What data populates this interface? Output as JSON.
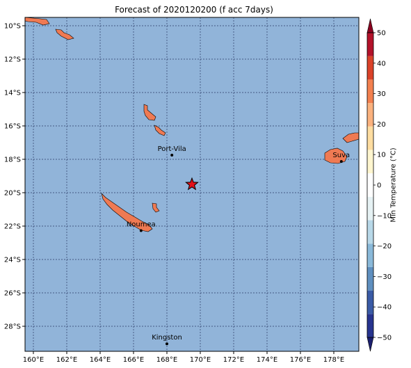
{
  "title": "Forecast of 2020120200 (f acc 7days)",
  "map": {
    "lon_range": [
      159.5,
      179.5
    ],
    "lat_range": [
      -29.5,
      -9.5
    ],
    "lon_ticks": [
      "160°E",
      "162°E",
      "164°E",
      "166°E",
      "168°E",
      "170°E",
      "172°E",
      "174°E",
      "176°E",
      "178°E"
    ],
    "lat_ticks": [
      "10°S",
      "12°S",
      "14°S",
      "16°S",
      "18°S",
      "20°S",
      "22°S",
      "24°S",
      "26°S",
      "28°S"
    ],
    "ocean_color": "#91b4d9",
    "land_color": "#ef7a53",
    "cities": [
      {
        "name": "Port-Vila",
        "lon": 168.3,
        "lat": -17.75
      },
      {
        "name": "Noumea",
        "lon": 166.45,
        "lat": -22.27
      },
      {
        "name": "Suva",
        "lon": 178.45,
        "lat": -18.13
      },
      {
        "name": "Kingston",
        "lon": 168.0,
        "lat": -29.05
      }
    ],
    "marker": {
      "type": "star-icon",
      "color": "#e3111b",
      "lon": 169.5,
      "lat": -19.5
    }
  },
  "colorbar": {
    "label": "Min Temperature (°C)",
    "ticks": [
      "50",
      "40",
      "30",
      "20",
      "10",
      "0",
      "−10",
      "−20",
      "−30",
      "−40",
      "−50"
    ],
    "colors": [
      "#1b1f6e",
      "#27348f",
      "#3a5ba6",
      "#5f8fbf",
      "#8ab9d9",
      "#b8d8e8",
      "#e6f2f4",
      "#ffffff",
      "#fff6cf",
      "#fedda1",
      "#fbb27e",
      "#f3804f",
      "#da4229",
      "#b3122a",
      "#8a001f"
    ]
  }
}
